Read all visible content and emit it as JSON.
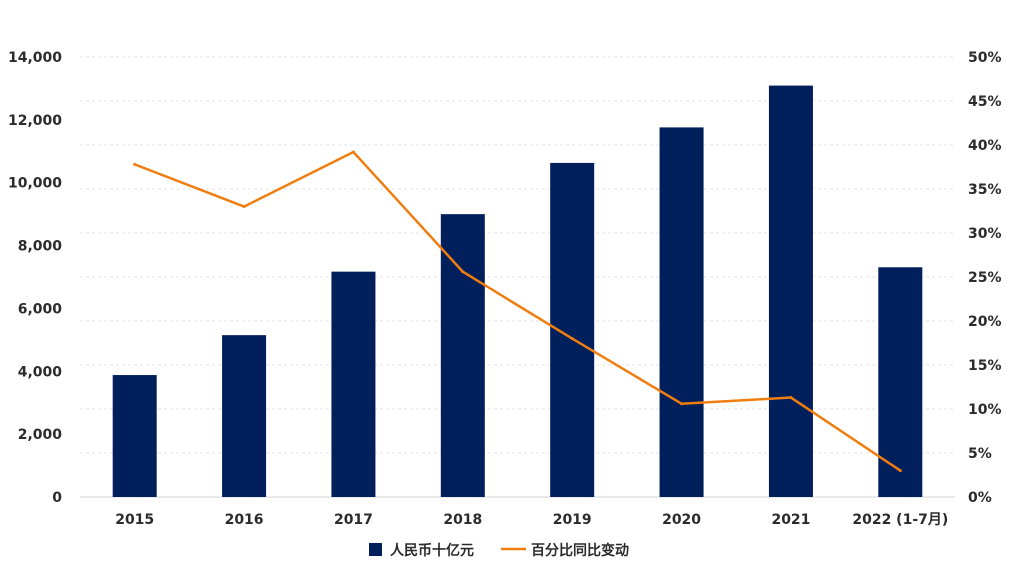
{
  "chart_data": {
    "type": "bar",
    "categories": [
      "2015",
      "2016",
      "2017",
      "2018",
      "2019",
      "2020",
      "2021",
      "2022 (1-7月)"
    ],
    "series": [
      {
        "name": "人民币十亿元",
        "type": "bar",
        "axis": "left",
        "color": "#001f5b",
        "values": [
          3880,
          5150,
          7170,
          9000,
          10630,
          11760,
          13090,
          7310
        ]
      },
      {
        "name": "百分比同比变动",
        "type": "line",
        "axis": "right",
        "color": "#f07d0f",
        "values": [
          37.8,
          33.0,
          39.2,
          25.6,
          18.0,
          10.6,
          11.3,
          3.0
        ]
      }
    ],
    "ylim": [
      0,
      14000
    ],
    "y_ticks": [
      "0",
      "2,000",
      "4,000",
      "6,000",
      "8,000",
      "10,000",
      "12,000",
      "14,000"
    ],
    "y2lim": [
      0,
      50
    ],
    "y2_ticks": [
      "0%",
      "5%",
      "10%",
      "15%",
      "20%",
      "25%",
      "30%",
      "35%",
      "40%",
      "45%",
      "50%"
    ],
    "grid": true,
    "legend_position": "bottom-center"
  }
}
